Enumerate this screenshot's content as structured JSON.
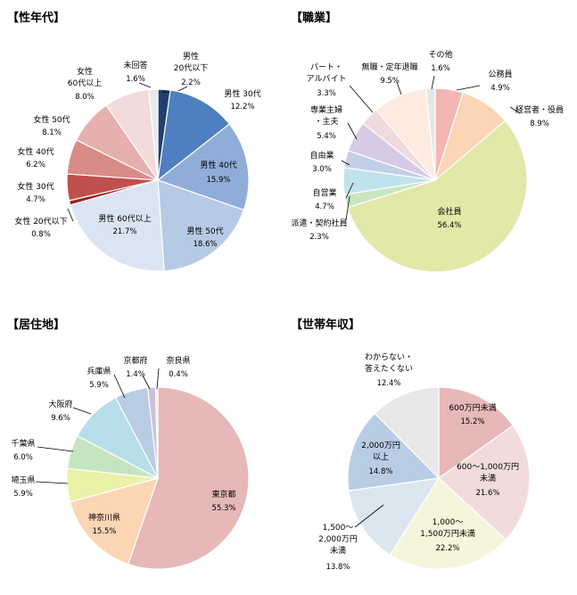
{
  "chart_data": [
    {
      "type": "pie",
      "title": "【性年代】",
      "slices": [
        {
          "label": "男性\n20代以下",
          "value": 2.2,
          "pct": "2.2%",
          "color": "#1f3f6e"
        },
        {
          "label": "男性 30代",
          "value": 12.2,
          "pct": "12.2%",
          "color": "#4f7fc0"
        },
        {
          "label": "男性 40代",
          "value": 15.9,
          "pct": "15.9%",
          "color": "#8fadd8"
        },
        {
          "label": "男性 50代",
          "value": 18.6,
          "pct": "18.6%",
          "color": "#b6cae6"
        },
        {
          "label": "男性 60代以上",
          "value": 21.7,
          "pct": "21.7%",
          "color": "#dbe4f2"
        },
        {
          "label": "女性 20代以下",
          "value": 0.8,
          "pct": "0.8%",
          "color": "#9e2222"
        },
        {
          "label": "女性 30代",
          "value": 4.7,
          "pct": "4.7%",
          "color": "#c0504d"
        },
        {
          "label": "女性 40代",
          "value": 6.2,
          "pct": "6.2%",
          "color": "#d98b89"
        },
        {
          "label": "女性 50代",
          "value": 8.1,
          "pct": "8.1%",
          "color": "#e6b0ae"
        },
        {
          "label": "女性\n60代以上",
          "value": 8.0,
          "pct": "8.0%",
          "color": "#f2dcdb"
        },
        {
          "label": "未回答",
          "value": 1.6,
          "pct": "1.6%",
          "color": "#e8e8e8"
        }
      ]
    },
    {
      "type": "pie",
      "title": "【職業】",
      "slices": [
        {
          "label": "公務員",
          "value": 4.9,
          "pct": "4.9%",
          "color": "#f4b6b4"
        },
        {
          "label": "経営者・役員",
          "value": 8.9,
          "pct": "8.9%",
          "color": "#fbd5b5"
        },
        {
          "label": "会社員",
          "value": 56.4,
          "pct": "56.4%",
          "color": "#e2e8a8"
        },
        {
          "label": "派遣・契約社員",
          "value": 2.3,
          "pct": "2.3%",
          "color": "#c8e6c0"
        },
        {
          "label": "自営業",
          "value": 4.7,
          "pct": "4.7%",
          "color": "#bfe3ea"
        },
        {
          "label": "自由業",
          "value": 3.0,
          "pct": "3.0%",
          "color": "#c3cfe6"
        },
        {
          "label": "専業主婦\n・主夫",
          "value": 5.4,
          "pct": "5.4%",
          "color": "#d6cae4"
        },
        {
          "label": "パート・\nアルバイト",
          "value": 3.3,
          "pct": "3.3%",
          "color": "#f0dadd"
        },
        {
          "label": "無職・定年退職",
          "value": 9.5,
          "pct": "9.5%",
          "color": "#fdebdf"
        },
        {
          "label": "その他",
          "value": 1.6,
          "pct": "1.6%",
          "color": "#e6e6e6"
        }
      ]
    },
    {
      "type": "pie",
      "title": "【居住地】",
      "slices": [
        {
          "label": "東京都",
          "value": 55.3,
          "pct": "55.3%",
          "color": "#e6b8b7"
        },
        {
          "label": "神奈川県",
          "value": 15.5,
          "pct": "15.5%",
          "color": "#fcd5b4"
        },
        {
          "label": "埼玉県",
          "value": 5.9,
          "pct": "5.9%",
          "color": "#ebf1a6"
        },
        {
          "label": "千葉県",
          "value": 6.0,
          "pct": "6.0%",
          "color": "#c4e5c0"
        },
        {
          "label": "大阪府",
          "value": 9.6,
          "pct": "9.6%",
          "color": "#b7dee8"
        },
        {
          "label": "兵庫県",
          "value": 5.9,
          "pct": "5.9%",
          "color": "#b8cce4"
        },
        {
          "label": "京都府",
          "value": 1.4,
          "pct": "1.4%",
          "color": "#ccc0da"
        },
        {
          "label": "奈良県",
          "value": 0.4,
          "pct": "0.4%",
          "color": "#f2dcdb"
        }
      ]
    },
    {
      "type": "pie",
      "title": "【世帯年収】",
      "slices": [
        {
          "label": "600万円未満",
          "value": 15.2,
          "pct": "15.2%",
          "color": "#e6b8b7"
        },
        {
          "label": "600～1,000万円\n未満",
          "value": 21.6,
          "pct": "21.6%",
          "color": "#f2dcdb"
        },
        {
          "label": "1,000～\n1,500万円未満",
          "value": 22.2,
          "pct": "22.2%",
          "color": "#f5f5dc"
        },
        {
          "label": "1,500～\n2,000万円\n未満",
          "value": 13.8,
          "pct": "13.8%",
          "color": "#dce6f1"
        },
        {
          "label": "2,000万円\n以上",
          "value": 14.8,
          "pct": "14.8%",
          "color": "#b8cce4"
        },
        {
          "label": "わからない・\n答えたくない",
          "value": 12.4,
          "pct": "12.4%",
          "color": "#e8e8e8"
        }
      ]
    }
  ]
}
